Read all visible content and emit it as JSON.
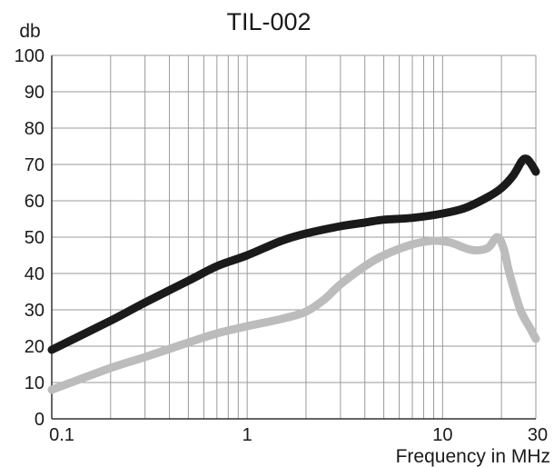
{
  "chart_data": {
    "type": "line",
    "title": "TIL-002",
    "ylabel": "db",
    "xlabel": "Frequency in MHz",
    "x_scale": "log",
    "xlim": [
      0.1,
      30
    ],
    "ylim": [
      0,
      100
    ],
    "grid": true,
    "legend": "none",
    "yticks": [
      0,
      10,
      20,
      30,
      40,
      50,
      60,
      70,
      80,
      90,
      100
    ],
    "xtick_labels": [
      {
        "value": 0.1,
        "label": "0.1"
      },
      {
        "value": 1,
        "label": "1"
      },
      {
        "value": 10,
        "label": "10"
      },
      {
        "value": 30,
        "label": "30"
      }
    ],
    "x_minor_gridlines": [
      0.1,
      0.2,
      0.3,
      0.4,
      0.5,
      0.6,
      0.7,
      0.8,
      0.9,
      1,
      2,
      3,
      4,
      5,
      6,
      7,
      8,
      9,
      10,
      20,
      30
    ],
    "series": [
      {
        "color": "#1a1a1a",
        "points": [
          [
            0.1,
            19
          ],
          [
            0.2,
            27
          ],
          [
            0.3,
            32
          ],
          [
            0.5,
            38
          ],
          [
            0.7,
            42
          ],
          [
            1,
            45
          ],
          [
            1.5,
            49
          ],
          [
            2,
            51
          ],
          [
            3,
            53
          ],
          [
            4,
            54
          ],
          [
            5,
            54.8
          ],
          [
            7,
            55.3
          ],
          [
            10,
            56.5
          ],
          [
            13,
            58
          ],
          [
            17,
            61
          ],
          [
            20,
            63.5
          ],
          [
            23,
            67
          ],
          [
            25.5,
            71
          ],
          [
            27,
            71.5
          ],
          [
            28.5,
            70
          ],
          [
            30,
            68
          ]
        ]
      },
      {
        "color": "#bcbcbc",
        "points": [
          [
            0.1,
            8
          ],
          [
            0.2,
            14
          ],
          [
            0.3,
            17
          ],
          [
            0.5,
            21
          ],
          [
            0.7,
            23.5
          ],
          [
            1,
            25.5
          ],
          [
            1.5,
            27.5
          ],
          [
            2,
            29.5
          ],
          [
            2.5,
            33
          ],
          [
            3,
            37
          ],
          [
            4,
            42
          ],
          [
            5,
            45
          ],
          [
            7,
            48
          ],
          [
            9,
            49
          ],
          [
            11,
            48.5
          ],
          [
            14,
            46.5
          ],
          [
            17,
            47
          ],
          [
            19,
            50
          ],
          [
            20.5,
            47
          ],
          [
            22,
            40
          ],
          [
            25,
            30
          ],
          [
            28,
            25
          ],
          [
            30,
            22
          ]
        ]
      }
    ]
  }
}
